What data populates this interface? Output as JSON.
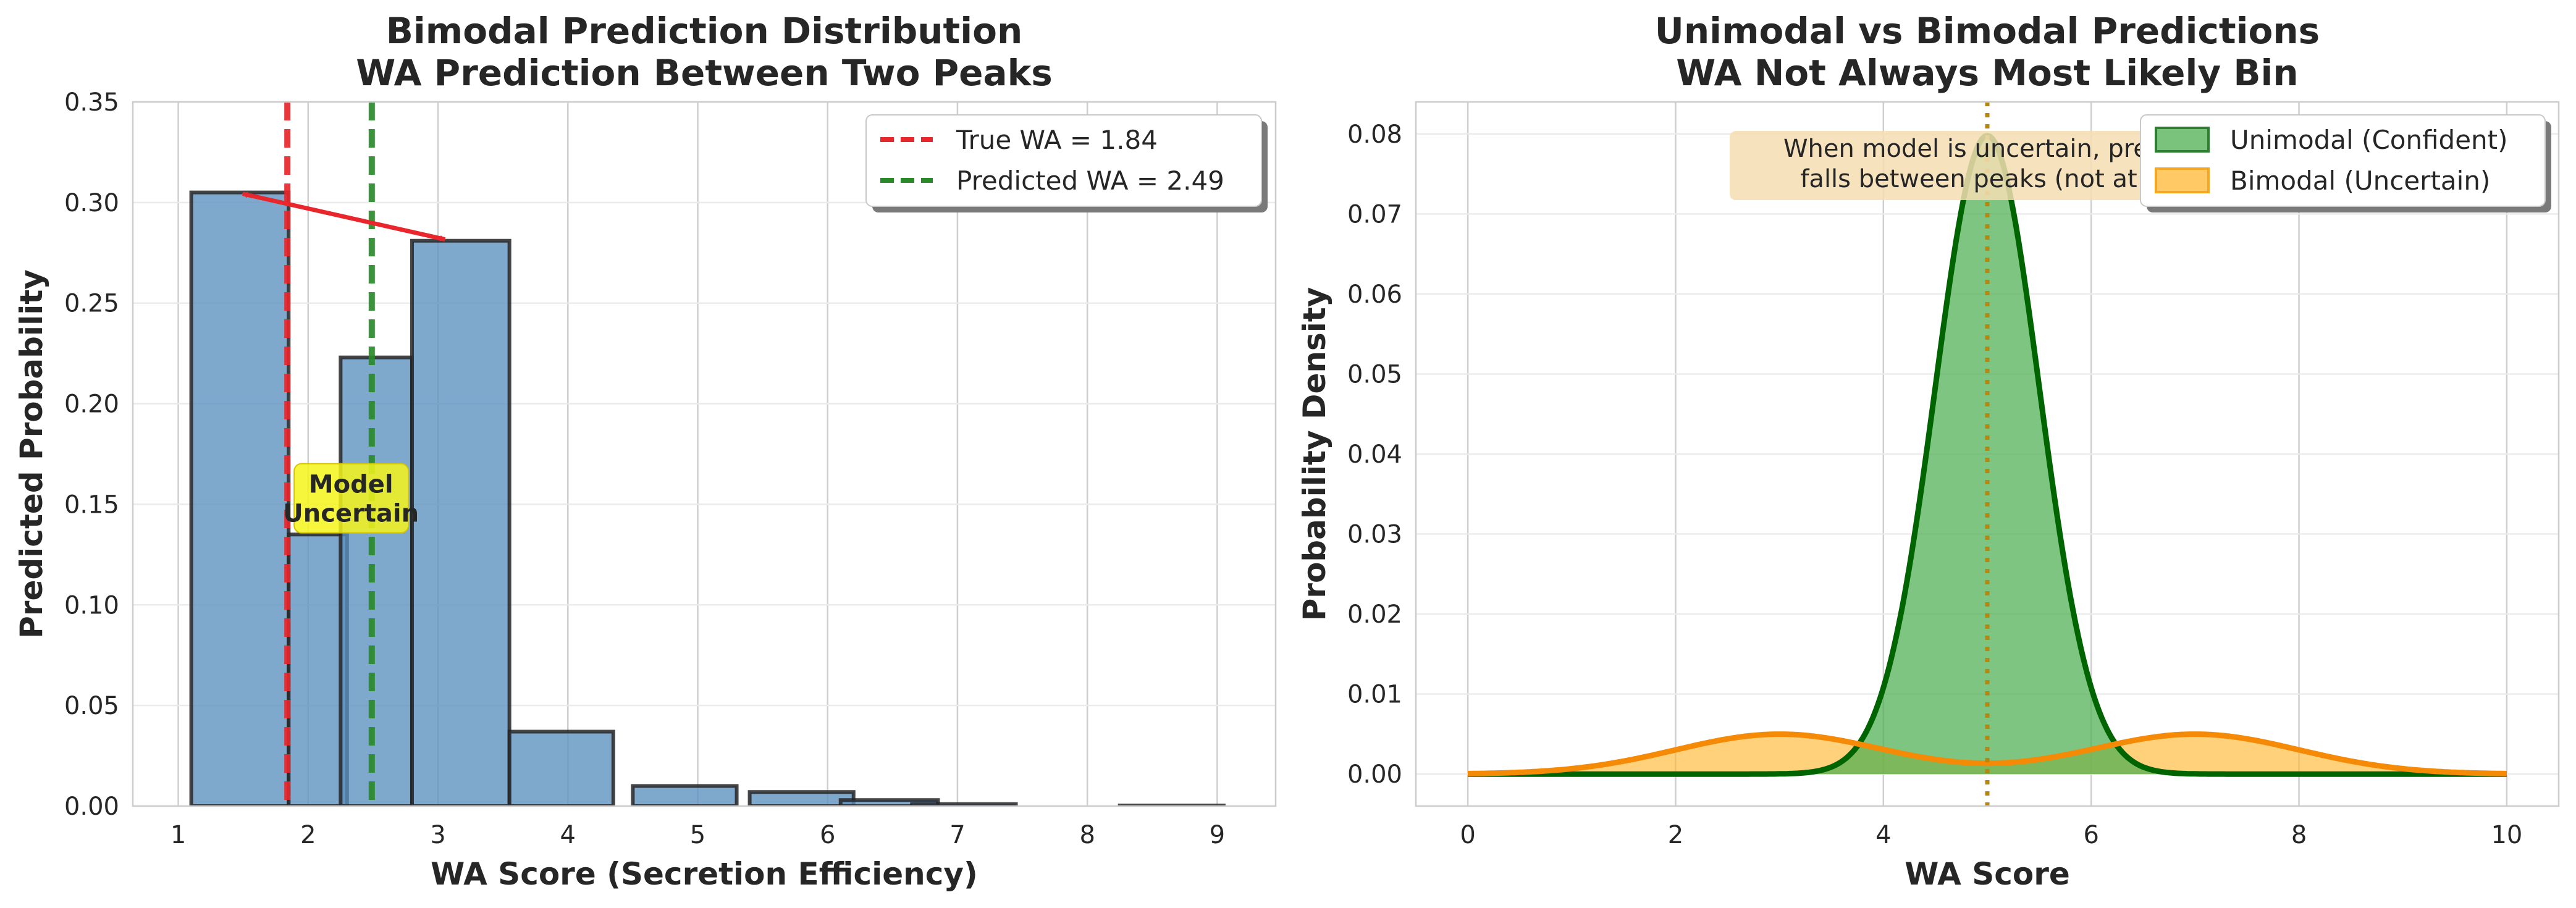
{
  "chart_data": [
    {
      "type": "bar",
      "title_line1": "Bimodal Prediction Distribution",
      "title_line2": "WA Prediction Between Two Peaks",
      "xlabel": "WA Score (Secretion Efficiency)",
      "ylabel": "Predicted Probability",
      "xlim": [
        0.65,
        9.45
      ],
      "ylim": [
        0,
        0.35
      ],
      "xticks": [
        "1",
        "2",
        "3",
        "4",
        "5",
        "6",
        "7",
        "8",
        "9"
      ],
      "yticks": [
        "0.00",
        "0.05",
        "0.10",
        "0.15",
        "0.20",
        "0.25",
        "0.30",
        "0.35"
      ],
      "grid": true,
      "legend_position": "top-right",
      "bins": [
        {
          "x_start": 1.1,
          "x_end": 1.85,
          "value": 0.305
        },
        {
          "x_start": 1.85,
          "x_end": 2.3,
          "value": 0.135
        },
        {
          "x_start": 2.25,
          "x_end": 2.8,
          "value": 0.223
        },
        {
          "x_start": 2.8,
          "x_end": 3.55,
          "value": 0.281
        },
        {
          "x_start": 3.55,
          "x_end": 4.35,
          "value": 0.037
        },
        {
          "x_start": 4.5,
          "x_end": 5.3,
          "value": 0.01
        },
        {
          "x_start": 5.4,
          "x_end": 6.2,
          "value": 0.007
        },
        {
          "x_start": 6.1,
          "x_end": 6.85,
          "value": 0.003
        },
        {
          "x_start": 6.65,
          "x_end": 7.45,
          "value": 0.001
        },
        {
          "x_start": 8.25,
          "x_end": 9.05,
          "value": 0.0003
        }
      ],
      "reference_lines": [
        {
          "label": "True WA = 1.84",
          "x": 1.84,
          "color": "#e8262b"
        },
        {
          "label": "Predicted WA = 2.49",
          "x": 2.49,
          "color": "#2a8a2a"
        }
      ],
      "peak_arrow": {
        "from": [
          1.45,
          0.305
        ],
        "to": [
          3.1,
          0.281
        ]
      },
      "annotation": {
        "line1": "Model",
        "line2": "Uncertain",
        "x": 2.33,
        "y": 0.153
      },
      "bar_color": "#5b8fbf"
    },
    {
      "type": "area",
      "title_line1": "Unimodal vs Bimodal Predictions",
      "title_line2": "WA Not Always Most Likely Bin",
      "xlabel": "WA Score",
      "ylabel": "Probability Density",
      "xlim": [
        -0.5,
        10.5
      ],
      "ylim": [
        -0.004,
        0.084
      ],
      "xticks": [
        "0",
        "2",
        "4",
        "6",
        "8",
        "10"
      ],
      "yticks": [
        "0.00",
        "0.01",
        "0.02",
        "0.03",
        "0.04",
        "0.05",
        "0.06",
        "0.07",
        "0.08"
      ],
      "grid": true,
      "legend_position": "top-right",
      "series": [
        {
          "name": "Unimodal (Confident)",
          "distribution": "normal",
          "mean": 5,
          "sd": 0.5,
          "scale": 0.1,
          "peak": 0.0798,
          "line_color": "#006400",
          "fill_color": "#4caf50"
        },
        {
          "name": "Bimodal (Uncertain)",
          "distribution": "two-normal mixture",
          "means": [
            3,
            7
          ],
          "sd": 1,
          "scale": 0.0125,
          "peak": 0.005,
          "line_color": "#f58a07",
          "fill_color": "#ffb833"
        }
      ],
      "vertical_line": {
        "x": 5,
        "color": "#b8860b",
        "style": "dotted"
      },
      "annotation": {
        "line1": "When model is uncertain, prediction",
        "line2": "falls between peaks (not at peak)",
        "x": 5,
        "y": 0.078
      }
    }
  ]
}
